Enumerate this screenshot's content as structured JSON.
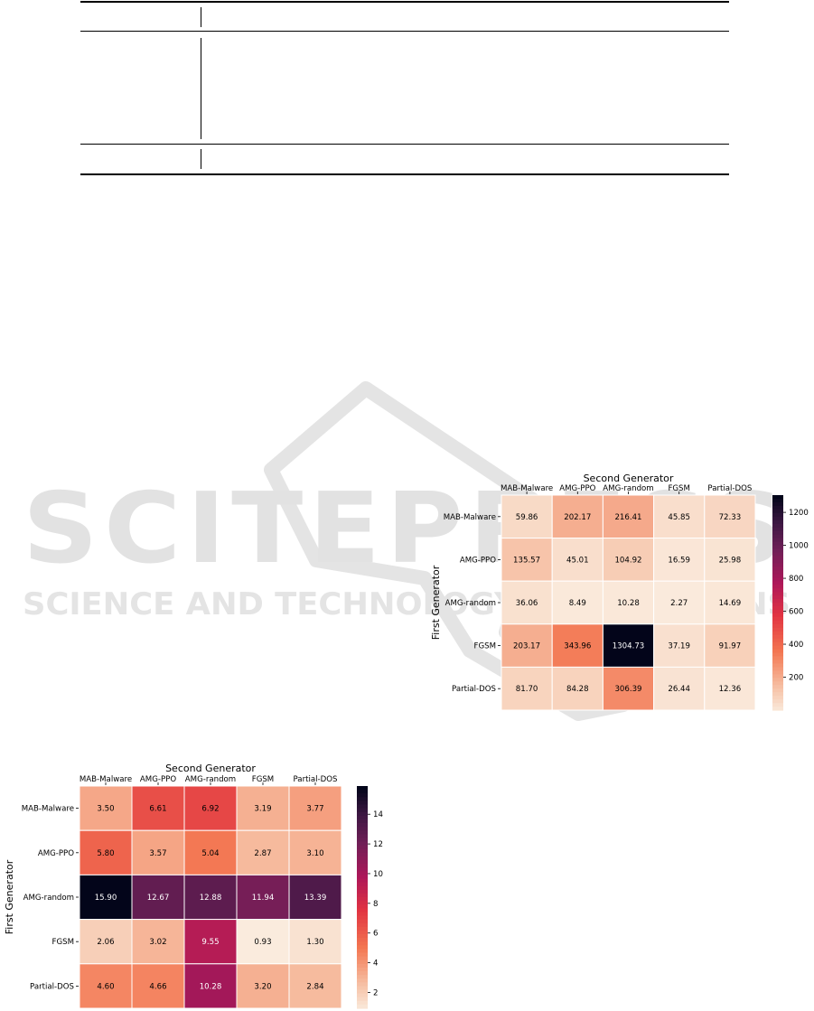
{
  "chart_data": [
    {
      "type": "heatmap",
      "title": "Second Generator",
      "xlabel": "Second Generator",
      "ylabel": "First Generator",
      "x_categories": [
        "MAB-Malware",
        "AMG-PPO",
        "AMG-random",
        "FGSM",
        "Partial-DOS"
      ],
      "y_categories": [
        "MAB-Malware",
        "AMG-PPO",
        "AMG-random",
        "FGSM",
        "Partial-DOS"
      ],
      "values": [
        [
          59.86,
          202.17,
          216.41,
          45.85,
          72.33
        ],
        [
          135.57,
          45.01,
          104.92,
          16.59,
          25.98
        ],
        [
          36.06,
          8.49,
          10.28,
          2.27,
          14.69
        ],
        [
          203.17,
          343.96,
          1304.73,
          37.19,
          91.97
        ],
        [
          81.7,
          84.28,
          306.39,
          26.44,
          12.36
        ]
      ],
      "cell_labels": [
        [
          "59.86",
          "202.17",
          "216.41",
          "45.85",
          "72.33"
        ],
        [
          "135.57",
          "45.01",
          "104.92",
          "16.59",
          "25.98"
        ],
        [
          "36.06",
          "8.49",
          "10.28",
          "2.27",
          "14.69"
        ],
        [
          "203.17",
          "343.96",
          "1304.73",
          "37.19",
          "91.97"
        ],
        [
          "81.70",
          "84.28",
          "306.39",
          "26.44",
          "12.36"
        ]
      ],
      "colorbar": {
        "range": [
          0,
          1304.73
        ],
        "ticks": [
          200,
          400,
          600,
          800,
          1000,
          1200
        ]
      },
      "colormap": "rocket_r"
    },
    {
      "type": "heatmap",
      "title": "Second Generator",
      "xlabel": "Second Generator",
      "ylabel": "First Generator",
      "x_categories": [
        "MAB-Malware",
        "AMG-PPO",
        "AMG-random",
        "FGSM",
        "Partial-DOS"
      ],
      "y_categories": [
        "MAB-Malware",
        "AMG-PPO",
        "AMG-random",
        "FGSM",
        "Partial-DOS"
      ],
      "values": [
        [
          3.5,
          6.61,
          6.92,
          3.19,
          3.77
        ],
        [
          5.8,
          3.57,
          5.04,
          2.87,
          3.1
        ],
        [
          15.9,
          12.67,
          12.88,
          11.94,
          13.39
        ],
        [
          2.06,
          3.02,
          9.55,
          0.93,
          1.3
        ],
        [
          4.6,
          4.66,
          10.28,
          3.2,
          2.84
        ]
      ],
      "cell_labels": [
        [
          "3.50",
          "6.61",
          "6.92",
          "3.19",
          "3.77"
        ],
        [
          "5.80",
          "3.57",
          "5.04",
          "2.87",
          "3.10"
        ],
        [
          "15.90",
          "12.67",
          "12.88",
          "11.94",
          "13.39"
        ],
        [
          "2.06",
          "3.02",
          "9.55",
          "0.93",
          "1.30"
        ],
        [
          "4.60",
          "4.66",
          "10.28",
          "3.20",
          "2.84"
        ]
      ],
      "colorbar": {
        "range": [
          0.93,
          15.9
        ],
        "ticks": [
          2,
          4,
          6,
          8,
          10,
          12,
          14
        ]
      },
      "colormap": "rocket_r"
    }
  ],
  "watermark": {
    "line1": "SCITEPRESS",
    "line2": "SCIENCE AND TECHNOLOGY PUBLICATIONS"
  },
  "colors": {
    "grid": "#ffffff",
    "rule": "#000000",
    "watermark": "#e6e6e6"
  }
}
